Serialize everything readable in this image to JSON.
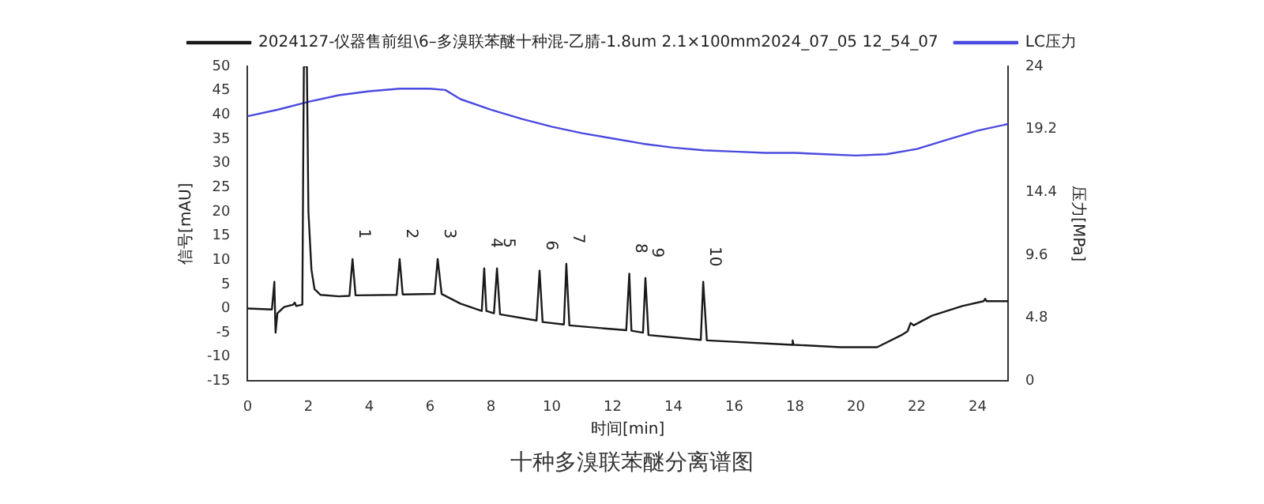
{
  "chart_data": {
    "type": "line",
    "title": "十种多溴联苯醚分离谱图",
    "xlabel": "时间[min]",
    "ylabel": "信号[mAU]",
    "y2label": "压力[MPa]",
    "xlim": [
      0,
      25
    ],
    "xticks": [
      0,
      2,
      4,
      6,
      8,
      10,
      12,
      14,
      16,
      18,
      20,
      22,
      24
    ],
    "ylim": [
      -15,
      50
    ],
    "yticks": [
      -15,
      -10,
      -5,
      0,
      5,
      10,
      15,
      20,
      25,
      30,
      35,
      40,
      45,
      50
    ],
    "y2lim": [
      0,
      24
    ],
    "y2ticks": [
      0,
      4.8,
      9.6,
      14.4,
      19.2,
      24
    ],
    "grid": false,
    "legend": "top",
    "marker": "none",
    "line_style": "solid",
    "series": [
      {
        "name": "2024127-仪器售前组\\6–多溴联苯醚十种混-乙腈-1.8um 2.1×100mm2024_07_05 12_54_07",
        "color": "#1a1a1a",
        "x": [
          0,
          0.8,
          0.88,
          0.92,
          0.98,
          1.2,
          1.5,
          1.55,
          1.6,
          1.8,
          1.85,
          1.95,
          2.0,
          2.1,
          2.2,
          2.4,
          3.0,
          3.35,
          3.45,
          3.55,
          4.9,
          5.0,
          5.1,
          6.15,
          6.25,
          6.38,
          7.0,
          7.7,
          7.78,
          7.85,
          8.1,
          8.2,
          8.3,
          9.5,
          9.6,
          9.7,
          10.4,
          10.48,
          10.58,
          12.45,
          12.55,
          12.62,
          13.0,
          13.08,
          13.18,
          14.9,
          14.98,
          15.1,
          17.9,
          17.92,
          17.95,
          19.5,
          20.7,
          21.5,
          21.7,
          21.8,
          21.9,
          22.5,
          23.5,
          24.2,
          24.25,
          24.3,
          25
        ],
        "values": [
          0,
          -0.2,
          5.5,
          -5,
          -1,
          0.3,
          0.8,
          1.2,
          0.5,
          0.8,
          50,
          50,
          20,
          8,
          4,
          2.8,
          2.5,
          2.6,
          10.2,
          2.7,
          2.8,
          10.2,
          2.9,
          3,
          10.2,
          3,
          1,
          -0.5,
          8.3,
          -0.5,
          -1,
          8.3,
          -1.2,
          -2.5,
          7.8,
          -2.8,
          -3.3,
          9.2,
          -3.5,
          -4.5,
          7.2,
          -4.6,
          -5,
          6.3,
          -5.5,
          -6.5,
          5.5,
          -6.6,
          -7.5,
          -6.6,
          -7.5,
          -8,
          -8,
          -5.5,
          -4.7,
          -3,
          -3.5,
          -1.5,
          0.5,
          1.5,
          2,
          1.5,
          1.5
        ]
      },
      {
        "name": "LC压力",
        "color": "#4a4ae0",
        "axis": "y2",
        "x": [
          0,
          1,
          2,
          3,
          4,
          5,
          6,
          6.5,
          7,
          8,
          9,
          10,
          11,
          12,
          13,
          14,
          15,
          16,
          17,
          18,
          19,
          20,
          21,
          22,
          23,
          24,
          25
        ],
        "values": [
          20.2,
          20.7,
          21.3,
          21.8,
          22.1,
          22.3,
          22.3,
          22.2,
          21.5,
          20.7,
          20.0,
          19.4,
          18.9,
          18.5,
          18.1,
          17.8,
          17.6,
          17.5,
          17.4,
          17.4,
          17.3,
          17.2,
          17.3,
          17.7,
          18.4,
          19.1,
          19.6
        ]
      }
    ],
    "annotations": [
      {
        "text": "1",
        "x": 3.45,
        "y": 10.2
      },
      {
        "text": "2",
        "x": 5.0,
        "y": 10.2
      },
      {
        "text": "3",
        "x": 6.25,
        "y": 10.2
      },
      {
        "text": "4",
        "x": 7.78,
        "y": 8.3
      },
      {
        "text": "5",
        "x": 8.2,
        "y": 8.3
      },
      {
        "text": "6",
        "x": 9.6,
        "y": 7.8
      },
      {
        "text": "7",
        "x": 10.48,
        "y": 9.2
      },
      {
        "text": "8",
        "x": 12.55,
        "y": 7.2
      },
      {
        "text": "9",
        "x": 13.08,
        "y": 6.3
      },
      {
        "text": "10",
        "x": 14.98,
        "y": 5.5
      }
    ]
  }
}
